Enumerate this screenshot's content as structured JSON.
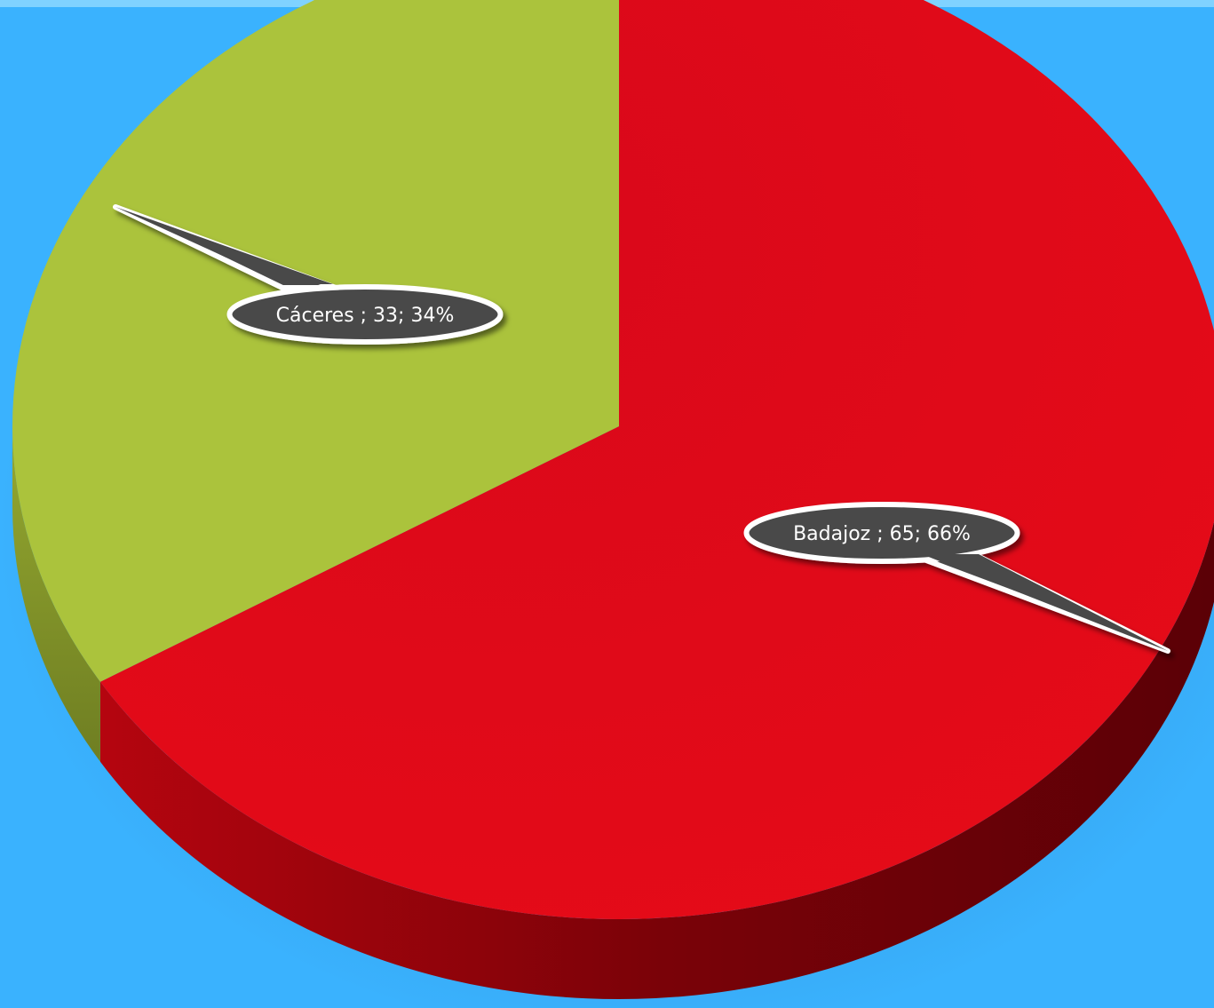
{
  "chart_data": {
    "type": "pie",
    "title": "",
    "style": "3d",
    "slices": [
      {
        "label": "Badajoz ",
        "value": 65,
        "percent": "66%",
        "color": "#e2091a",
        "side_color": "#8a0510"
      },
      {
        "label": "Cáceres ",
        "value": 33,
        "percent": "34%",
        "color": "#abc33c",
        "side_color": "#7f9128"
      }
    ],
    "data_labels": [
      "Badajoz ; 65; 66%",
      "Cáceres ; 33; 34%"
    ]
  },
  "colors": {
    "background": "#3ab2fe",
    "top_rule": "#7fd2ff",
    "callout_fill": "#4a4a4a",
    "callout_stroke": "#ffffff"
  }
}
